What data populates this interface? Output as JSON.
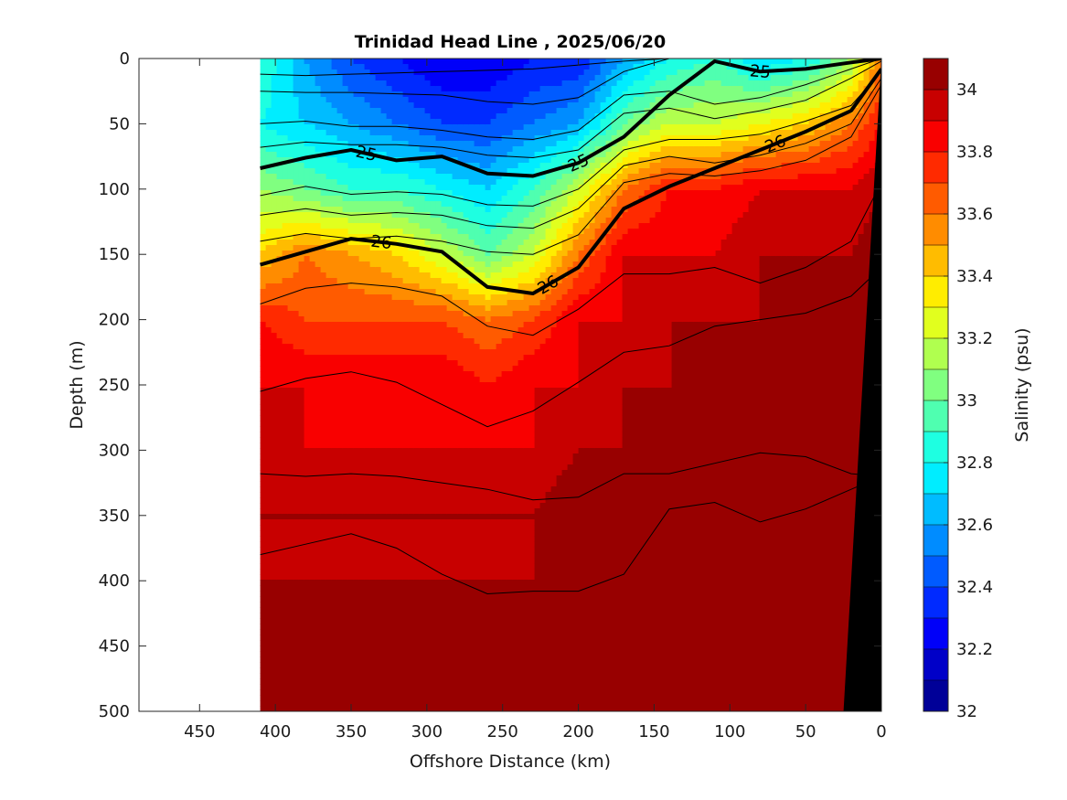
{
  "chart_data": {
    "type": "heatmap",
    "title": "Trinidad Head Line , 2025/06/20",
    "xlabel": "Offshore Distance (km)",
    "ylabel": "Depth (m)",
    "colorbar_label": "Salinity (psu)",
    "xlim": [
      490,
      0
    ],
    "ylim": [
      0,
      500
    ],
    "x_reversed": true,
    "y_reversed": true,
    "x_ticks": [
      450,
      400,
      350,
      300,
      250,
      200,
      150,
      100,
      50,
      0
    ],
    "y_ticks": [
      0,
      50,
      100,
      150,
      200,
      250,
      300,
      350,
      400,
      450,
      500
    ],
    "colorbar": {
      "range": [
        32,
        34.1
      ],
      "levels": [
        32.0,
        32.1,
        32.2,
        32.3,
        32.4,
        32.5,
        32.6,
        32.7,
        32.8,
        32.9,
        33.0,
        33.1,
        33.2,
        33.3,
        33.4,
        33.5,
        33.6,
        33.7,
        33.8,
        33.9,
        34.0
      ],
      "ticks": [
        32,
        32.2,
        32.4,
        32.6,
        32.8,
        33,
        33.2,
        33.4,
        33.6,
        33.8,
        34
      ]
    },
    "data_extent_km": [
      410,
      0
    ],
    "stations_km": [
      410,
      380,
      350,
      320,
      290,
      260,
      230,
      200,
      170,
      140,
      110,
      80,
      50,
      20,
      0
    ],
    "depths_m": [
      0,
      50,
      100,
      150,
      200,
      250,
      300,
      350,
      400,
      450,
      500
    ],
    "salinity": [
      [
        32.9,
        32.6,
        32.4,
        32.3,
        32.2,
        32.2,
        32.3,
        32.3,
        32.6,
        32.8,
        32.9,
        32.7,
        32.8,
        33.1,
        33.6
      ],
      [
        32.8,
        32.7,
        32.6,
        32.5,
        32.4,
        32.4,
        32.5,
        32.6,
        33.0,
        33.2,
        33.2,
        33.3,
        33.4,
        33.6,
        33.8
      ],
      [
        33.1,
        33.0,
        32.9,
        32.9,
        32.8,
        32.7,
        32.9,
        33.2,
        33.6,
        33.8,
        33.8,
        33.9,
        33.9,
        33.9,
        34.0
      ],
      [
        33.4,
        33.6,
        33.5,
        33.4,
        33.2,
        33.0,
        33.2,
        33.6,
        33.9,
        33.9,
        33.9,
        34.0,
        34.0,
        34.0,
        34.1
      ],
      [
        33.8,
        33.7,
        33.7,
        33.7,
        33.7,
        33.6,
        33.7,
        33.9,
        33.9,
        34.0,
        34.0,
        34.0,
        34.1,
        34.1,
        34.1
      ],
      [
        33.9,
        33.9,
        33.9,
        33.9,
        33.9,
        33.8,
        33.9,
        33.9,
        34.0,
        34.0,
        34.1,
        34.0,
        34.1,
        34.1,
        34.1
      ],
      [
        34.0,
        33.9,
        33.9,
        33.9,
        33.9,
        33.9,
        33.9,
        34.0,
        34.0,
        34.1,
        34.1,
        34.1,
        34.1,
        34.2,
        34.2
      ],
      [
        34.0,
        34.0,
        34.0,
        34.0,
        34.0,
        34.0,
        34.0,
        34.1,
        34.1,
        34.1,
        34.1,
        34.1,
        34.1,
        34.2,
        34.2
      ],
      [
        34.0,
        34.0,
        34.0,
        34.0,
        34.0,
        34.0,
        34.0,
        34.0,
        34.1,
        34.1,
        34.1,
        34.1,
        34.1,
        34.2,
        34.2
      ],
      [
        34.1,
        34.1,
        34.0,
        34.1,
        34.0,
        34.1,
        34.0,
        34.1,
        34.1,
        34.2,
        34.1,
        34.1,
        34.2,
        34.2,
        34.2
      ],
      [
        34.1,
        34.1,
        34.1,
        34.1,
        34.1,
        34.1,
        34.1,
        34.2,
        34.2,
        34.2,
        34.2,
        34.2,
        34.2,
        34.2,
        34.2
      ]
    ],
    "density_contours": {
      "thin_depths_m": [
        [
          12,
          13,
          12,
          11,
          10,
          9,
          8,
          5,
          2,
          0,
          0,
          0,
          0,
          0,
          0
        ],
        [
          25,
          26,
          26,
          27,
          28,
          33,
          35,
          30,
          10,
          0,
          0,
          0,
          0,
          0,
          0
        ],
        [
          50,
          48,
          52,
          52,
          55,
          60,
          62,
          55,
          28,
          25,
          35,
          30,
          20,
          8,
          0
        ],
        [
          68,
          64,
          66,
          66,
          68,
          74,
          76,
          70,
          42,
          38,
          46,
          40,
          32,
          15,
          2
        ],
        [
          105,
          98,
          104,
          102,
          104,
          112,
          113,
          100,
          70,
          62,
          62,
          58,
          48,
          36,
          10
        ],
        [
          120,
          115,
          120,
          118,
          120,
          128,
          130,
          115,
          82,
          75,
          80,
          74,
          65,
          50,
          15
        ],
        [
          140,
          134,
          138,
          136,
          140,
          148,
          150,
          135,
          95,
          88,
          90,
          86,
          78,
          60,
          20
        ],
        [
          188,
          176,
          172,
          175,
          182,
          205,
          212,
          192,
          165,
          165,
          160,
          172,
          160,
          140,
          95
        ],
        [
          255,
          245,
          240,
          248,
          265,
          282,
          270,
          248,
          225,
          220,
          205,
          200,
          195,
          182,
          160
        ],
        [
          318,
          320,
          318,
          320,
          325,
          330,
          338,
          336,
          318,
          318,
          310,
          302,
          305,
          318,
          320
        ],
        [
          380,
          372,
          364,
          375,
          395,
          410,
          408,
          408,
          395,
          345,
          340,
          355,
          345,
          330,
          320
        ]
      ],
      "bold_25_depths_m": [
        84,
        76,
        70,
        78,
        75,
        88,
        90,
        80,
        60,
        28,
        2,
        10,
        8,
        3,
        0
      ],
      "bold_26_depths_m": [
        158,
        148,
        138,
        142,
        148,
        175,
        180,
        160,
        115,
        98,
        84,
        70,
        56,
        40,
        8
      ],
      "labels": [
        "25",
        "25",
        "26",
        "26",
        "25",
        "26"
      ]
    }
  }
}
